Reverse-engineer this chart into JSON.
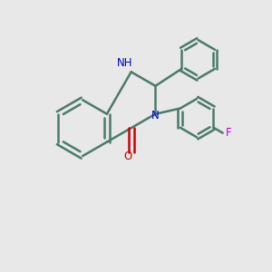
{
  "background_color": "#e8e8e8",
  "bond_color": "#4a7a6a",
  "nitrogen_color": "#0000cc",
  "oxygen_color": "#cc0000",
  "fluorine_color": "#cc00cc",
  "line_width": 1.8,
  "figsize": [
    3.0,
    3.0
  ],
  "dpi": 100,
  "xlim": [
    0,
    10
  ],
  "ylim": [
    0,
    10
  ]
}
